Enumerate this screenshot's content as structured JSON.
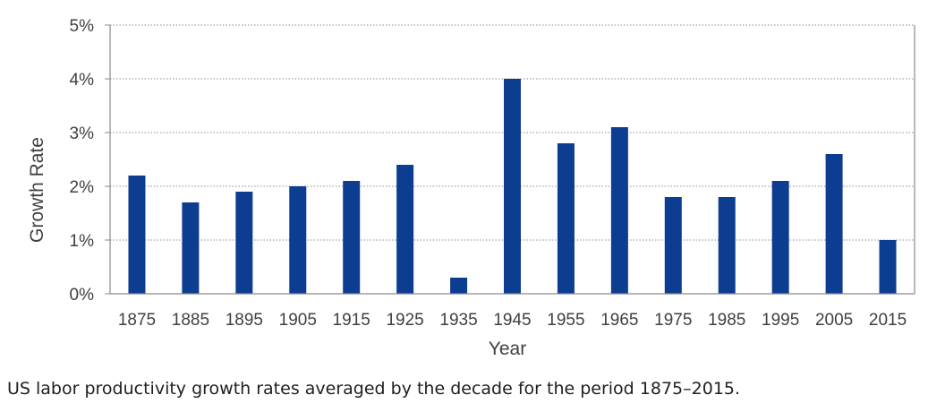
{
  "chart_data": {
    "type": "bar",
    "categories": [
      "1875",
      "1885",
      "1895",
      "1905",
      "1915",
      "1925",
      "1935",
      "1945",
      "1955",
      "1965",
      "1975",
      "1985",
      "1995",
      "2005",
      "2015"
    ],
    "values": [
      2.2,
      1.7,
      1.9,
      2.0,
      2.1,
      2.4,
      0.3,
      4.0,
      2.8,
      3.1,
      1.8,
      1.8,
      2.1,
      2.6,
      1.0
    ],
    "title": "",
    "xlabel": "Year",
    "ylabel": "Growth Rate",
    "ylim": [
      0,
      5
    ],
    "yticks": [
      0,
      1,
      2,
      3,
      4,
      5
    ],
    "ytick_labels": [
      "0%",
      "1%",
      "2%",
      "3%",
      "4%",
      "5%"
    ],
    "grid": "horizontal dotted",
    "bar_color": "#0d3d91"
  },
  "caption": "US labor productivity growth rates averaged by the decade for the period 1875–2015."
}
